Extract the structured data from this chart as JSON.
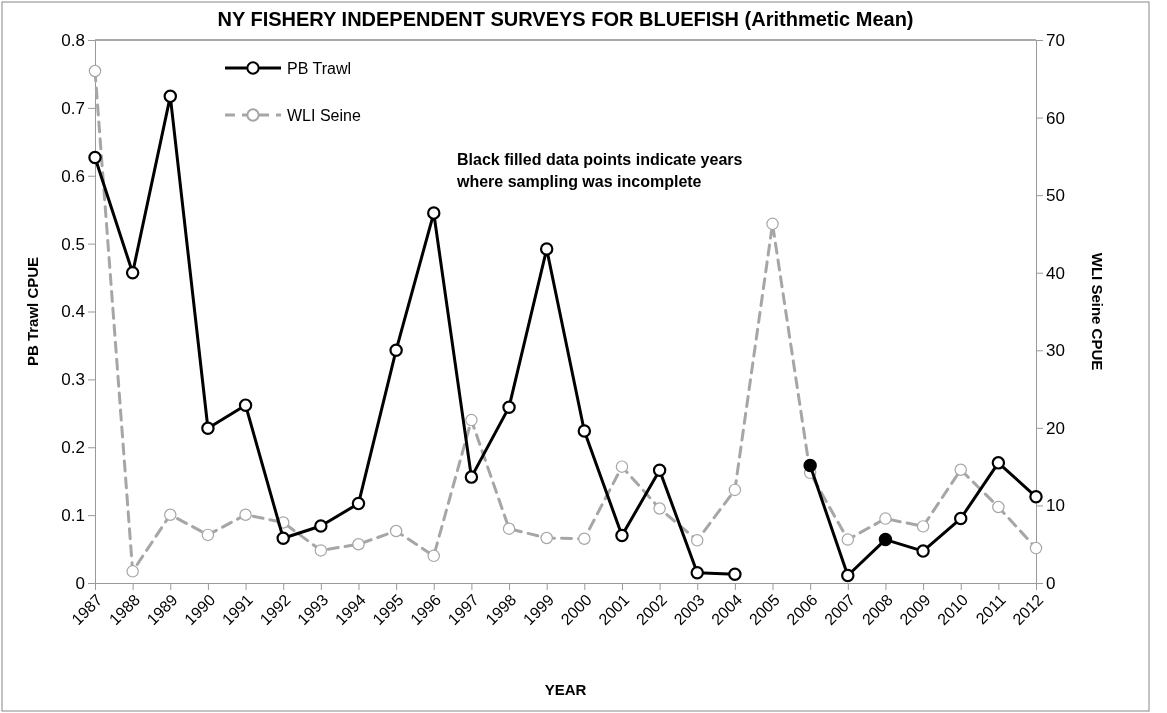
{
  "chart_data": {
    "type": "line",
    "title": "NY FISHERY INDEPENDENT  SURVEYS FOR BLUEFISH (Arithmetic Mean)",
    "xlabel": "YEAR",
    "ylabel": "PB Trawl CPUE",
    "y2label": "WLI Seine CPUE",
    "categories": [
      "1987",
      "1988",
      "1989",
      "1990",
      "1991",
      "1992",
      "1993",
      "1994",
      "1995",
      "1996",
      "1997",
      "1998",
      "1999",
      "2000",
      "2001",
      "2002",
      "2003",
      "2004",
      "2005",
      "2006",
      "2007",
      "2008",
      "2009",
      "2010",
      "2011",
      "2012"
    ],
    "ylim": [
      0,
      0.8
    ],
    "yticks": [
      0,
      0.1,
      0.2,
      0.3,
      0.4,
      0.5,
      0.6,
      0.7,
      0.8
    ],
    "y2lim": [
      0,
      70
    ],
    "y2ticks": [
      0,
      10,
      20,
      30,
      40,
      50,
      60,
      70
    ],
    "grid": false,
    "legend": "top left",
    "marker": "circle",
    "annotations": [
      "Black filled data points indicate years where sampling was incomplete"
    ],
    "series": [
      {
        "name": "PB Trawl",
        "color": "#000000",
        "line_style": "solid",
        "values": [
          0.627,
          0.457,
          0.717,
          0.228,
          0.262,
          0.066,
          0.084,
          0.117,
          0.343,
          0.545,
          0.156,
          0.259,
          0.492,
          0.224,
          0.07,
          0.166,
          0.015,
          0.013,
          null,
          0.173,
          0.011,
          0.064,
          0.047,
          0.095,
          0.177,
          0.127
        ]
      },
      {
        "name": "WLI Seine",
        "color": "#a6a6a6",
        "line_style": "dashed",
        "axis": "y2",
        "values": [
          66,
          1.5,
          8.8,
          6.2,
          8.8,
          7.8,
          4.2,
          5.0,
          6.7,
          3.5,
          21,
          7.0,
          5.8,
          5.7,
          15,
          9.6,
          5.5,
          12,
          46.3,
          14.2,
          5.6,
          8.3,
          7.3,
          14.6,
          9.8,
          4.5
        ]
      },
      {
        "type": "scatter",
        "color": "#000000",
        "values": [
          null,
          null,
          null,
          null,
          null,
          null,
          null,
          null,
          null,
          null,
          null,
          null,
          null,
          null,
          null,
          null,
          null,
          null,
          null,
          0.173,
          null,
          0.064,
          null,
          null,
          null,
          null
        ]
      }
    ]
  }
}
